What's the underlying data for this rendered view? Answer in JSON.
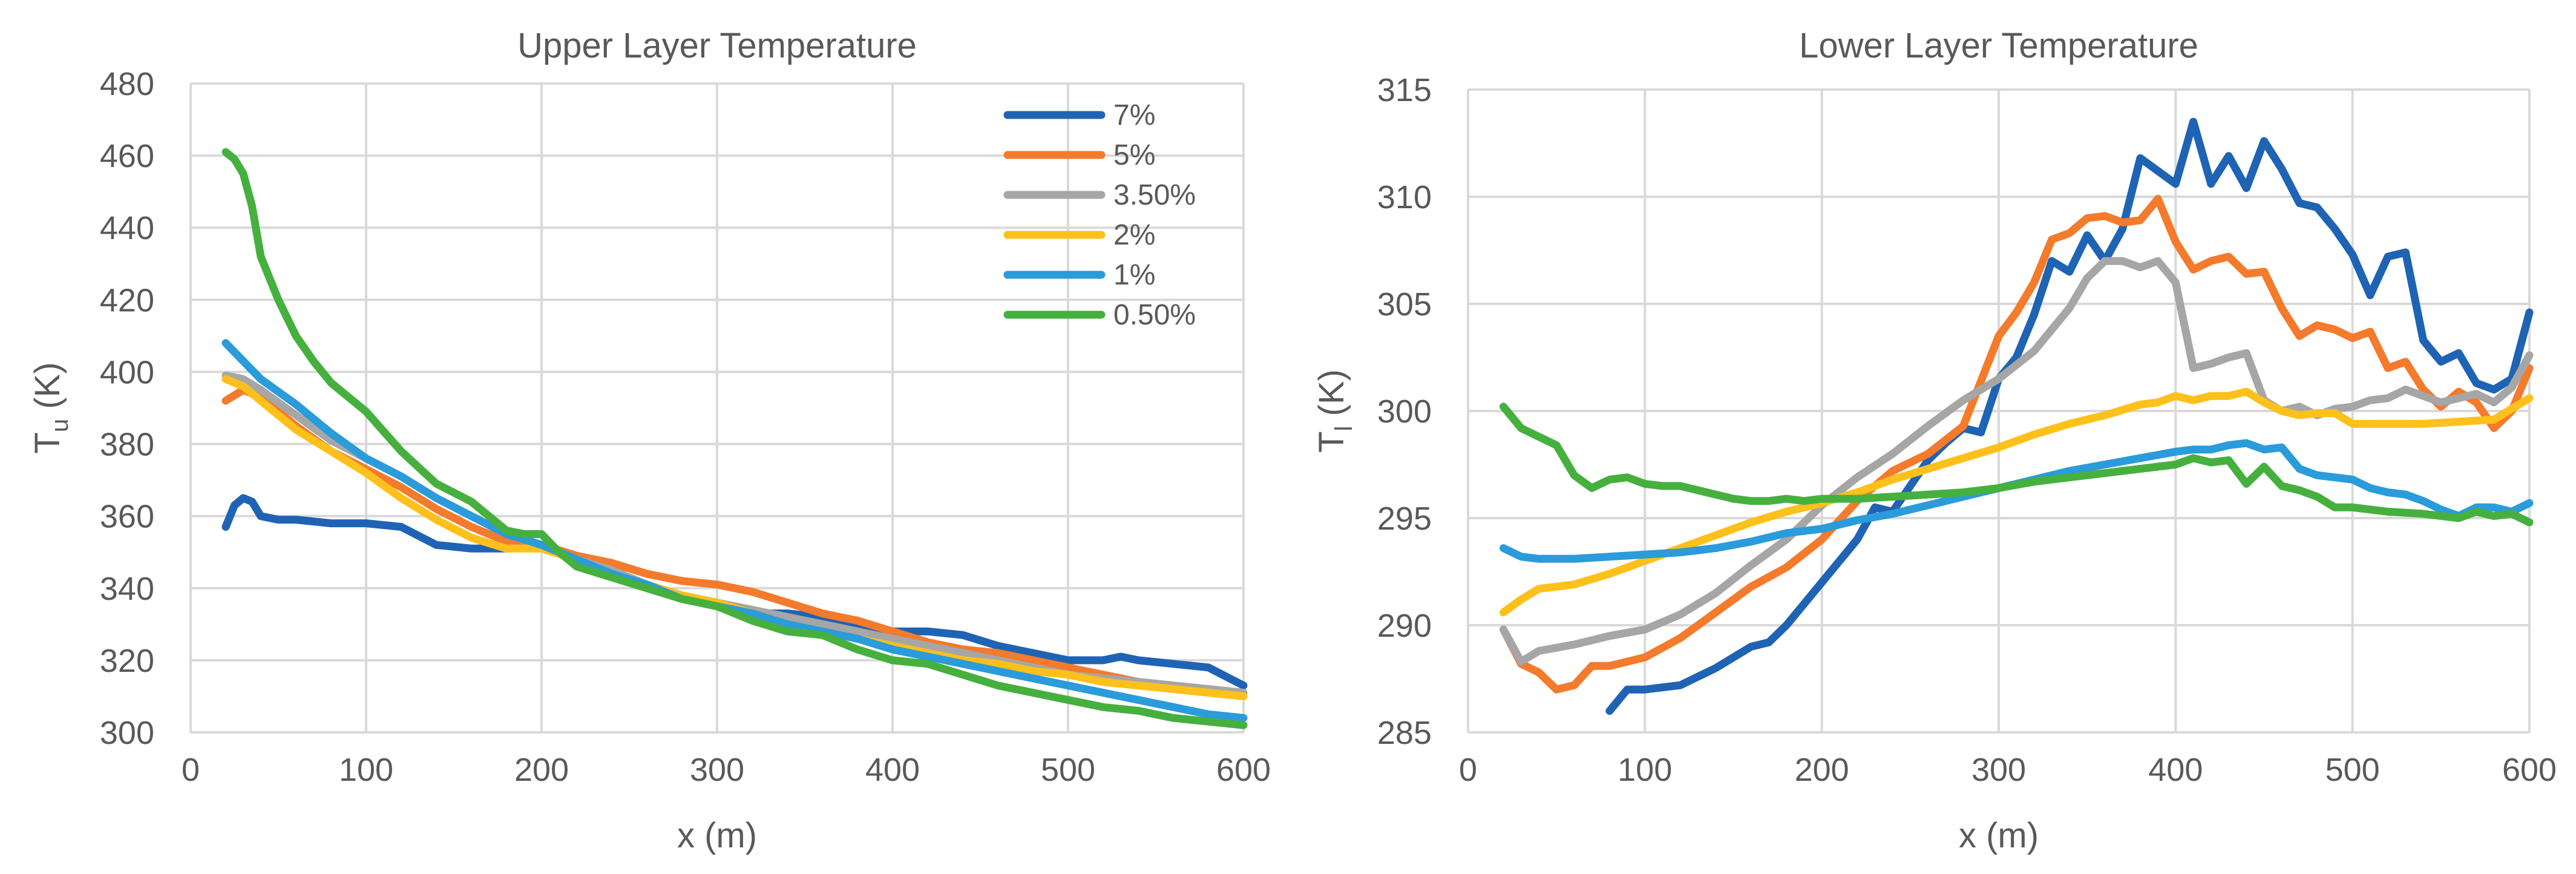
{
  "chart_data": [
    {
      "type": "line",
      "title": "Upper Layer Temperature",
      "xlabel": "x (m)",
      "ylabel_main": "T",
      "ylabel_sub": "u",
      "ylabel_unit": " (K)",
      "xlim": [
        0,
        600
      ],
      "ylim": [
        300,
        480
      ],
      "xticks": [
        "0",
        "100",
        "200",
        "300",
        "400",
        "500",
        "600"
      ],
      "yticks": [
        "300",
        "320",
        "340",
        "360",
        "380",
        "400",
        "420",
        "440",
        "460",
        "480"
      ],
      "grid": true,
      "legend_position": "top-right",
      "series": [
        {
          "name": "7%",
          "color": "#1f63b4",
          "x": [
            20,
            25,
            30,
            35,
            40,
            50,
            60,
            80,
            100,
            120,
            140,
            160,
            180,
            200,
            220,
            240,
            260,
            280,
            300,
            320,
            340,
            360,
            380,
            400,
            420,
            440,
            460,
            480,
            500,
            520,
            530,
            540,
            560,
            580,
            600
          ],
          "y": [
            357,
            363,
            365,
            364,
            360,
            359,
            359,
            358,
            358,
            357,
            352,
            351,
            351,
            352,
            349,
            344,
            341,
            337,
            335,
            333,
            333,
            332,
            330,
            328,
            328,
            327,
            324,
            322,
            320,
            320,
            321,
            320,
            319,
            318,
            313
          ]
        },
        {
          "name": "5%",
          "color": "#f47a2c",
          "x": [
            20,
            30,
            40,
            60,
            80,
            100,
            120,
            140,
            160,
            180,
            200,
            220,
            240,
            260,
            280,
            300,
            320,
            340,
            360,
            380,
            400,
            420,
            440,
            460,
            480,
            500,
            520,
            540,
            560,
            580,
            600
          ],
          "y": [
            392,
            395,
            393,
            385,
            378,
            373,
            368,
            362,
            357,
            353,
            352,
            349,
            347,
            344,
            342,
            341,
            339,
            336,
            333,
            331,
            328,
            325,
            323,
            322,
            320,
            318,
            316,
            314,
            313,
            312,
            311
          ]
        },
        {
          "name": "3.50%",
          "color": "#a6a6a6",
          "x": [
            20,
            30,
            40,
            60,
            80,
            100,
            120,
            140,
            160,
            180,
            200,
            220,
            240,
            260,
            280,
            300,
            320,
            340,
            360,
            380,
            400,
            420,
            440,
            460,
            480,
            500,
            520,
            540,
            560,
            580,
            600
          ],
          "y": [
            399,
            398,
            395,
            388,
            381,
            376,
            371,
            365,
            360,
            355,
            352,
            348,
            345,
            341,
            338,
            336,
            334,
            332,
            330,
            328,
            326,
            324,
            322,
            320,
            318,
            316,
            315,
            314,
            313,
            312,
            311
          ]
        },
        {
          "name": "2%",
          "color": "#fec01a",
          "x": [
            20,
            30,
            40,
            60,
            80,
            100,
            120,
            140,
            160,
            180,
            200,
            220,
            240,
            260,
            280,
            300,
            320,
            340,
            360,
            380,
            400,
            420,
            440,
            460,
            480,
            500,
            520,
            540,
            560,
            580,
            600
          ],
          "y": [
            398,
            396,
            392,
            384,
            378,
            372,
            365,
            359,
            354,
            351,
            351,
            348,
            344,
            341,
            338,
            336,
            333,
            330,
            328,
            326,
            324,
            322,
            320,
            319,
            317,
            316,
            314,
            313,
            312,
            311,
            310
          ]
        },
        {
          "name": "1%",
          "color": "#2a9bdb",
          "x": [
            20,
            30,
            40,
            60,
            80,
            100,
            120,
            140,
            160,
            180,
            200,
            220,
            240,
            260,
            280,
            300,
            320,
            340,
            360,
            380,
            400,
            420,
            440,
            460,
            480,
            500,
            520,
            540,
            560,
            580,
            600
          ],
          "y": [
            408,
            403,
            398,
            391,
            383,
            376,
            371,
            365,
            360,
            355,
            352,
            348,
            344,
            341,
            337,
            335,
            333,
            330,
            328,
            326,
            323,
            321,
            319,
            317,
            315,
            313,
            311,
            309,
            307,
            305,
            304
          ]
        },
        {
          "name": "0.50%",
          "color": "#46b03f",
          "x": [
            20,
            25,
            30,
            35,
            40,
            50,
            60,
            70,
            80,
            100,
            120,
            140,
            160,
            170,
            180,
            190,
            200,
            210,
            220,
            240,
            260,
            280,
            300,
            320,
            340,
            360,
            380,
            400,
            420,
            440,
            460,
            480,
            500,
            520,
            540,
            560,
            580,
            600
          ],
          "y": [
            461,
            459,
            455,
            446,
            432,
            420,
            410,
            403,
            397,
            389,
            378,
            369,
            364,
            360,
            356,
            355,
            355,
            350,
            346,
            343,
            340,
            337,
            335,
            331,
            328,
            327,
            323,
            320,
            319,
            316,
            313,
            311,
            309,
            307,
            306,
            304,
            303,
            302
          ]
        }
      ]
    },
    {
      "type": "line",
      "title": "Lower Layer Temperature",
      "xlabel": "x (m)",
      "ylabel_main": "T",
      "ylabel_sub": "l",
      "ylabel_unit": " (K)",
      "xlim": [
        0,
        600
      ],
      "ylim": [
        285,
        315
      ],
      "xticks": [
        "0",
        "100",
        "200",
        "300",
        "400",
        "500",
        "600"
      ],
      "yticks": [
        "285",
        "290",
        "295",
        "300",
        "305",
        "310",
        "315"
      ],
      "grid": true,
      "series": [
        {
          "name": "7%",
          "color": "#1f63b4",
          "x": [
            80,
            90,
            100,
            120,
            140,
            160,
            170,
            180,
            190,
            200,
            210,
            220,
            230,
            240,
            250,
            260,
            270,
            280,
            290,
            300,
            310,
            320,
            330,
            340,
            350,
            360,
            370,
            380,
            390,
            400,
            410,
            420,
            430,
            440,
            450,
            460,
            470,
            480,
            490,
            500,
            510,
            520,
            530,
            540,
            550,
            560,
            570,
            580,
            590,
            600
          ],
          "y": [
            286,
            287,
            287,
            287.2,
            288,
            289,
            289.2,
            290,
            291,
            292,
            293,
            294,
            295.5,
            295.3,
            296.5,
            297.7,
            298.5,
            299.2,
            299,
            301.5,
            302.5,
            304.5,
            307,
            306.5,
            308.2,
            307,
            308.5,
            311.8,
            311.2,
            310.6,
            313.5,
            310.6,
            311.9,
            310.4,
            312.6,
            311.3,
            309.7,
            309.5,
            308.5,
            307.3,
            305.4,
            307.2,
            307.4,
            303.3,
            302.3,
            302.7,
            301.3,
            301,
            301.5,
            304.6
          ]
        },
        {
          "name": "5%",
          "color": "#f47a2c",
          "x": [
            20,
            30,
            40,
            50,
            60,
            70,
            80,
            100,
            120,
            140,
            160,
            180,
            200,
            220,
            240,
            260,
            280,
            300,
            310,
            320,
            330,
            340,
            350,
            360,
            370,
            380,
            390,
            400,
            410,
            420,
            430,
            440,
            450,
            460,
            470,
            480,
            490,
            500,
            510,
            520,
            530,
            540,
            550,
            560,
            570,
            580,
            590,
            600
          ],
          "y": [
            289.8,
            288.2,
            287.8,
            287,
            287.2,
            288.1,
            288.1,
            288.5,
            289.4,
            290.6,
            291.8,
            292.7,
            294,
            295.8,
            297.2,
            298,
            299.3,
            303.5,
            304.6,
            306,
            308,
            308.3,
            309,
            309.1,
            308.8,
            308.9,
            309.9,
            307.9,
            306.6,
            307,
            307.2,
            306.4,
            306.5,
            304.8,
            303.5,
            304,
            303.8,
            303.4,
            303.7,
            302,
            302.3,
            301,
            300.2,
            300.9,
            300.4,
            299.2,
            300,
            302
          ]
        },
        {
          "name": "3.50%",
          "color": "#a6a6a6",
          "x": [
            20,
            30,
            40,
            60,
            80,
            100,
            120,
            140,
            160,
            180,
            200,
            220,
            240,
            260,
            280,
            300,
            320,
            340,
            350,
            360,
            370,
            380,
            390,
            400,
            410,
            420,
            430,
            440,
            450,
            460,
            470,
            480,
            490,
            500,
            510,
            520,
            530,
            540,
            550,
            560,
            570,
            580,
            590,
            600
          ],
          "y": [
            289.8,
            288.3,
            288.8,
            289.1,
            289.5,
            289.8,
            290.5,
            291.5,
            292.8,
            294,
            295.6,
            296.9,
            298,
            299.3,
            300.5,
            301.5,
            302.8,
            304.8,
            306.2,
            307,
            307,
            306.7,
            307,
            306,
            302,
            302.2,
            302.5,
            302.7,
            300.5,
            300,
            300.2,
            299.8,
            300.1,
            300.2,
            300.5,
            300.6,
            301,
            300.7,
            300.4,
            300.6,
            300.8,
            300.4,
            301.1,
            302.6
          ]
        },
        {
          "name": "2%",
          "color": "#fec01a",
          "x": [
            20,
            30,
            40,
            60,
            80,
            100,
            120,
            140,
            160,
            180,
            200,
            220,
            240,
            260,
            280,
            300,
            320,
            340,
            360,
            380,
            390,
            400,
            410,
            420,
            430,
            440,
            450,
            460,
            470,
            480,
            490,
            500,
            520,
            540,
            560,
            580,
            600
          ],
          "y": [
            290.6,
            291.2,
            291.7,
            291.9,
            292.4,
            293,
            293.6,
            294.2,
            294.8,
            295.3,
            295.7,
            296.2,
            296.8,
            297.3,
            297.8,
            298.3,
            298.9,
            299.4,
            299.8,
            300.3,
            300.4,
            300.7,
            300.5,
            300.7,
            300.7,
            300.9,
            300.4,
            300,
            299.8,
            299.9,
            299.9,
            299.4,
            299.4,
            299.4,
            299.5,
            299.6,
            300.6
          ]
        },
        {
          "name": "1%",
          "color": "#2a9bdb",
          "x": [
            20,
            30,
            40,
            60,
            80,
            100,
            120,
            140,
            160,
            180,
            200,
            220,
            240,
            260,
            280,
            300,
            320,
            340,
            360,
            380,
            400,
            410,
            420,
            430,
            440,
            450,
            460,
            470,
            480,
            490,
            500,
            510,
            520,
            530,
            540,
            550,
            560,
            570,
            580,
            590,
            600
          ],
          "y": [
            293.6,
            293.2,
            293.1,
            293.1,
            293.2,
            293.3,
            293.4,
            293.6,
            293.9,
            294.3,
            294.5,
            294.9,
            295.2,
            295.6,
            296,
            296.4,
            296.8,
            297.2,
            297.5,
            297.8,
            298.1,
            298.2,
            298.2,
            298.4,
            298.5,
            298.2,
            298.3,
            297.3,
            297,
            296.9,
            296.8,
            296.4,
            296.2,
            296.1,
            295.8,
            295.4,
            295.1,
            295.5,
            295.5,
            295.3,
            295.7
          ]
        },
        {
          "name": "0.50%",
          "color": "#46b03f",
          "x": [
            20,
            30,
            40,
            50,
            60,
            70,
            80,
            90,
            100,
            110,
            120,
            130,
            140,
            150,
            160,
            170,
            180,
            190,
            200,
            220,
            240,
            260,
            280,
            300,
            320,
            340,
            360,
            380,
            390,
            400,
            410,
            420,
            430,
            440,
            450,
            460,
            470,
            480,
            490,
            500,
            520,
            540,
            560,
            570,
            580,
            590,
            600
          ],
          "y": [
            300.2,
            299.2,
            298.8,
            298.4,
            297,
            296.4,
            296.8,
            296.9,
            296.6,
            296.5,
            296.5,
            296.3,
            296.1,
            295.9,
            295.8,
            295.8,
            295.9,
            295.8,
            295.9,
            295.9,
            296,
            296.1,
            296.2,
            296.4,
            296.7,
            296.9,
            297.1,
            297.3,
            297.4,
            297.5,
            297.8,
            297.6,
            297.7,
            296.6,
            297.4,
            296.5,
            296.3,
            296,
            295.5,
            295.5,
            295.3,
            295.2,
            295,
            295.3,
            295.1,
            295.2,
            294.8
          ]
        }
      ]
    }
  ]
}
